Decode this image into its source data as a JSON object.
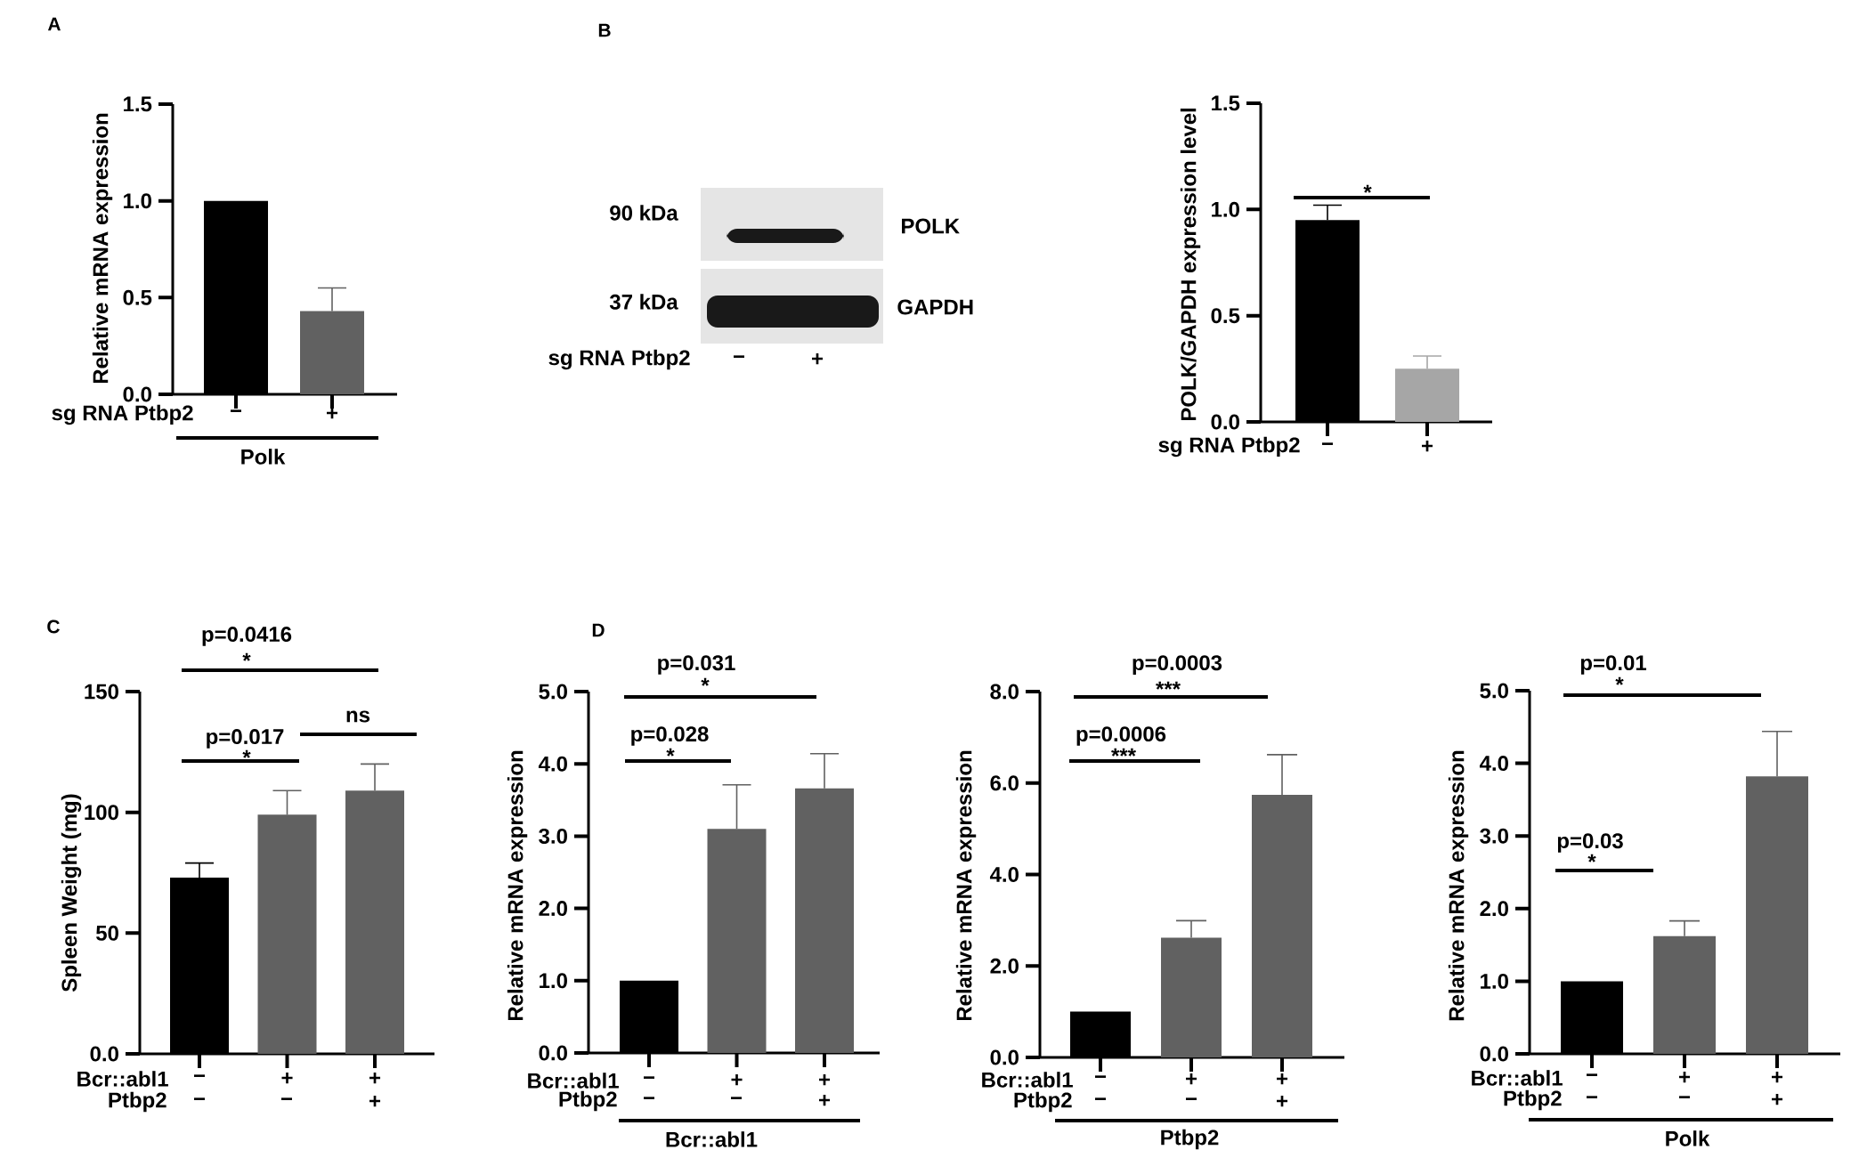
{
  "chart_data": [
    {
      "type": "bar",
      "title": "A",
      "ylabel": "Relative mRNA expression",
      "xlabel": "Polk",
      "categories": [
        "−",
        "+"
      ],
      "values": [
        1.0,
        0.43
      ],
      "colors": [
        "#000000",
        "#616161"
      ],
      "errors": [
        null,
        [
          0.43,
          0.55
        ]
      ],
      "ylim": [
        0,
        1.5
      ],
      "yticks": [
        {
          "value": 0,
          "label": "0.0"
        },
        0.5,
        {
          "value": 1,
          "label": "1.0"
        },
        1.5
      ],
      "annotations": [
        "sg RNA Ptbp2"
      ]
    },
    {
      "type": "other",
      "title": "B",
      "annotations": [
        "90 kDa",
        "POLK",
        "37 kDa",
        "GAPDH",
        "sg RNA Ptbp2",
        "−",
        "+"
      ]
    },
    {
      "type": "bar",
      "ylabel": "POLK/GAPDH expression level",
      "categories": [
        "−",
        "+"
      ],
      "values": [
        0.95,
        0.25
      ],
      "colors": [
        "#000000",
        "#a6a6a6"
      ],
      "errors": [
        [
          0.95,
          1.02
        ],
        [
          0.25,
          0.31
        ]
      ],
      "ylim": [
        0,
        1.5
      ],
      "yticks": [
        {
          "value": 0,
          "label": "0.0"
        },
        0.5,
        {
          "value": 1,
          "label": "1.0"
        },
        1.5
      ],
      "annotations": [
        "sg RNA Ptbp2",
        "*"
      ]
    },
    {
      "type": "bar",
      "title": "C",
      "ylabel": "Spleen Weight (mg)",
      "categories": [
        "−",
        "+",
        "+"
      ],
      "values": [
        73,
        99,
        109
      ],
      "colors": [
        "#000000",
        "#616161",
        "#616161"
      ],
      "errors": [
        [
          73,
          79
        ],
        [
          99,
          109
        ],
        [
          109,
          120
        ]
      ],
      "ylim": [
        0,
        150
      ],
      "yticks": [
        {
          "value": 0,
          "label": "0.0"
        },
        50,
        100,
        150
      ],
      "annotations": [
        "p=0.0416",
        "*",
        "p=0.017",
        "*",
        "ns",
        "Bcr::abl1",
        "Ptbp2",
        "−",
        "−",
        "+"
      ]
    },
    {
      "type": "bar",
      "title": "D",
      "ylabel": "Relative mRNA expression",
      "xlabel": "Bcr::abl1",
      "categories": [
        "−",
        "+",
        "+"
      ],
      "values": [
        1.0,
        3.1,
        3.66
      ],
      "colors": [
        "#000000",
        "#616161",
        "#616161"
      ],
      "errors": [
        null,
        [
          3.1,
          3.71
        ],
        [
          3.66,
          4.14
        ]
      ],
      "ylim": [
        0,
        5
      ],
      "yticks": [
        {
          "value": 0,
          "label": "0.0"
        },
        {
          "value": 1,
          "label": "1.0"
        },
        {
          "value": 2,
          "label": "2.0"
        },
        {
          "value": 3,
          "label": "3.0"
        },
        {
          "value": 4,
          "label": "4.0"
        },
        {
          "value": 5,
          "label": "5.0"
        }
      ],
      "annotations": [
        "p=0.031",
        "*",
        "p=0.028",
        "*",
        "Bcr::abl1",
        "Ptbp2",
        "−",
        "−",
        "+"
      ]
    },
    {
      "type": "bar",
      "ylabel": "Relative mRNA expression",
      "xlabel": "Ptbp2",
      "categories": [
        "−",
        "+",
        "+"
      ],
      "values": [
        1.0,
        2.62,
        5.74
      ],
      "colors": [
        "#000000",
        "#616161",
        "#616161"
      ],
      "errors": [
        null,
        [
          2.62,
          2.99
        ],
        [
          5.74,
          6.62
        ]
      ],
      "ylim": [
        0,
        8
      ],
      "yticks": [
        {
          "value": 0,
          "label": "0.0"
        },
        {
          "value": 2,
          "label": "2.0"
        },
        {
          "value": 4,
          "label": "4.0"
        },
        {
          "value": 6,
          "label": "6.0"
        },
        {
          "value": 8,
          "label": "8.0"
        }
      ],
      "annotations": [
        "p=0.0003",
        "***",
        "p=0.0006",
        "***",
        "Bcr::abl1",
        "Ptbp2",
        "−",
        "−",
        "+"
      ]
    },
    {
      "type": "bar",
      "ylabel": "Relative mRNA expression",
      "xlabel": "Polk",
      "categories": [
        "−",
        "+",
        "+"
      ],
      "values": [
        1.0,
        1.62,
        3.82
      ],
      "colors": [
        "#000000",
        "#616161",
        "#616161"
      ],
      "errors": [
        null,
        [
          1.62,
          1.83
        ],
        [
          3.82,
          4.44
        ]
      ],
      "ylim": [
        0,
        5
      ],
      "yticks": [
        {
          "value": 0,
          "label": "0.0"
        },
        {
          "value": 1,
          "label": "1.0"
        },
        {
          "value": 2,
          "label": "2.0"
        },
        {
          "value": 3,
          "label": "3.0"
        },
        {
          "value": 4,
          "label": "4.0"
        },
        {
          "value": 5,
          "label": "5.0"
        }
      ],
      "annotations": [
        "p=0.01",
        "*",
        "p=0.03",
        "*",
        "Bcr::abl1",
        "Ptbp2",
        "−",
        "−",
        "+"
      ]
    }
  ]
}
